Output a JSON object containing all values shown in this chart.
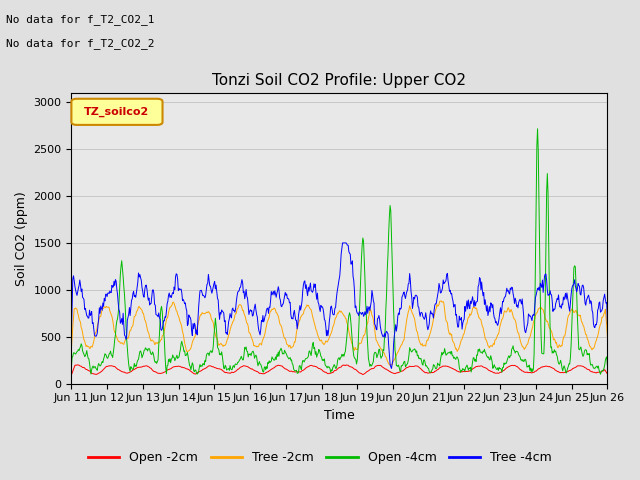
{
  "title": "Tonzi Soil CO2 Profile: Upper CO2",
  "ylabel": "Soil CO2 (ppm)",
  "xlabel": "Time",
  "annotations": [
    "No data for f_T2_CO2_1",
    "No data for f_T2_CO2_2"
  ],
  "legend_label": "TZ_soilco2",
  "ylim": [
    0,
    3100
  ],
  "yticks": [
    0,
    500,
    1000,
    1500,
    2000,
    2500,
    3000
  ],
  "x_tick_labels": [
    "Jun 11",
    "Jun 12",
    "Jun 13",
    "Jun 14",
    "Jun 15",
    "Jun 16",
    "Jun 17",
    "Jun 18",
    "Jun 19",
    "Jun 20",
    "Jun 21",
    "Jun 22",
    "Jun 23",
    "Jun 24",
    "Jun 25",
    "Jun 26"
  ],
  "series_labels": [
    "Open -2cm",
    "Tree -2cm",
    "Open -4cm",
    "Tree -4cm"
  ],
  "series_colors": [
    "#ff0000",
    "#ffa500",
    "#00bb00",
    "#0000ff"
  ],
  "background_color": "#e0e0e0",
  "plot_bg_color": "#e8e8e8",
  "title_fontsize": 11,
  "label_fontsize": 9,
  "tick_fontsize": 8
}
